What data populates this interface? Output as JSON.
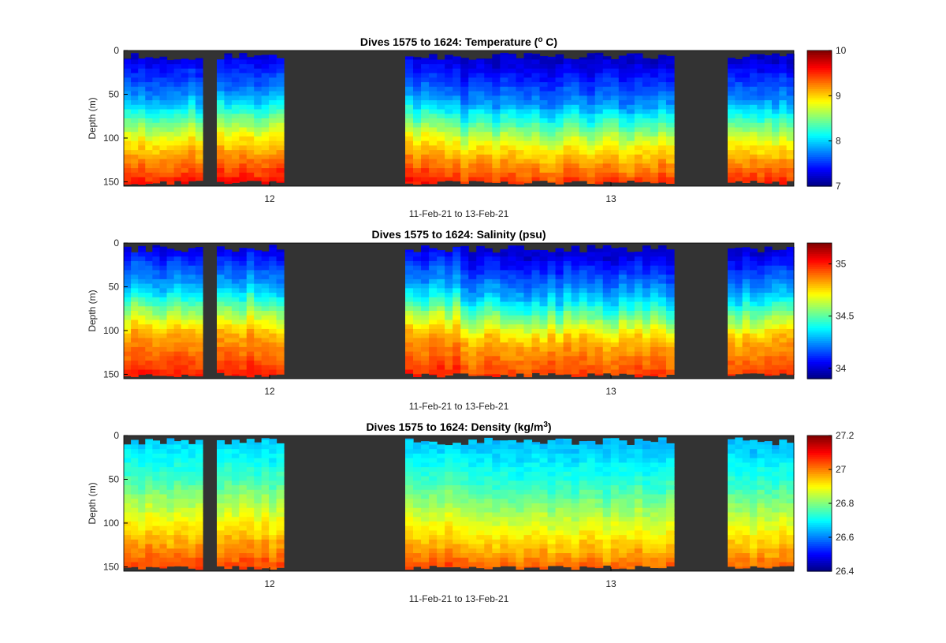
{
  "chart_data": [
    {
      "type": "heatmap",
      "variable": "temperature",
      "title_main": "Dives 1575 to 1624: Temperature (",
      "title_sup": "o",
      "title_tail": " C)",
      "ylabel": "Depth (m)",
      "xlabel": "11-Feb-21 to 13-Feb-21",
      "x_ticks": [
        "12",
        "13"
      ],
      "y_ticks": [
        "0",
        "50",
        "100",
        "150"
      ],
      "ylim": [
        0,
        155
      ],
      "colorbar": {
        "range": [
          7,
          10
        ],
        "ticks": [
          "7",
          "8",
          "9",
          "10"
        ]
      },
      "colormap": "jet",
      "background_color": "#333333",
      "approx_values": {
        "surface": 7.2,
        "depth_50m": 7.8,
        "depth_100m": 8.9,
        "depth_150m": 9.6
      }
    },
    {
      "type": "heatmap",
      "variable": "salinity",
      "title_main": "Dives 1575 to 1624: Salinity (psu)",
      "title_sup": "",
      "title_tail": "",
      "ylabel": "Depth (m)",
      "xlabel": "11-Feb-21 to 13-Feb-21",
      "x_ticks": [
        "12",
        "13"
      ],
      "y_ticks": [
        "0",
        "50",
        "100",
        "150"
      ],
      "ylim": [
        0,
        155
      ],
      "colorbar": {
        "range": [
          33.9,
          35.2
        ],
        "ticks": [
          "34",
          "34.5",
          "35"
        ]
      },
      "colormap": "jet",
      "background_color": "#333333",
      "approx_values": {
        "surface": 34.0,
        "depth_50m": 34.3,
        "depth_100m": 34.8,
        "depth_150m": 35.0
      }
    },
    {
      "type": "heatmap",
      "variable": "density",
      "title_main": "Dives 1575 to 1624: Density (kg/m",
      "title_sup": "3",
      "title_tail": ")",
      "ylabel": "Depth (m)",
      "xlabel": "11-Feb-21 to 13-Feb-21",
      "x_ticks": [
        "12",
        "13"
      ],
      "y_ticks": [
        "0",
        "50",
        "100",
        "150"
      ],
      "ylim": [
        0,
        155
      ],
      "colorbar": {
        "range": [
          26.4,
          27.2
        ],
        "ticks": [
          "26.4",
          "26.6",
          "26.8",
          "27",
          "27.2"
        ]
      },
      "colormap": "jet",
      "background_color": "#333333",
      "approx_values": {
        "surface": 26.65,
        "depth_50m": 26.75,
        "depth_100m": 26.9,
        "depth_150m": 27.05
      }
    }
  ]
}
